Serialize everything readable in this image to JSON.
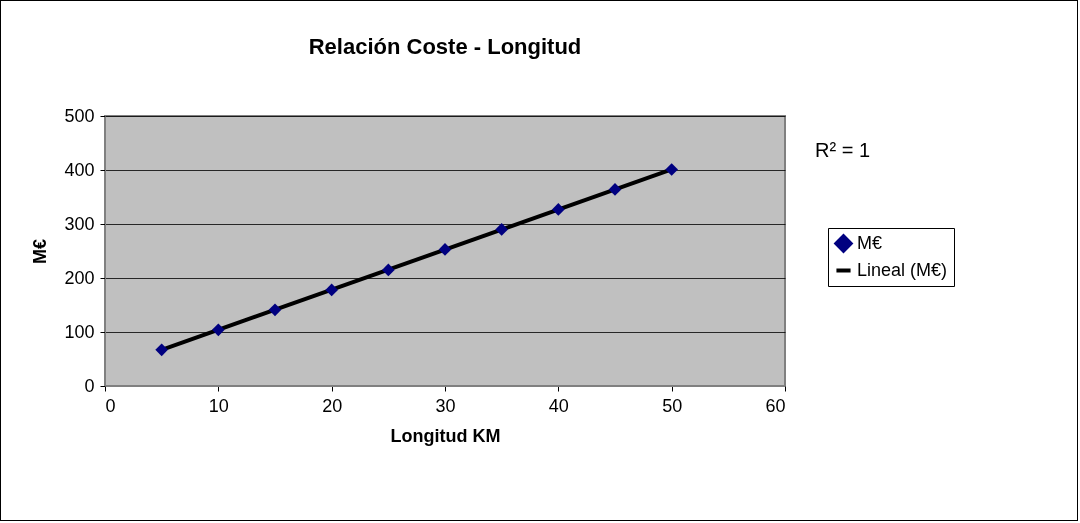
{
  "chart_data": {
    "type": "scatter",
    "title": "Relación Coste - Longitud",
    "xlabel": "Longitud KM",
    "ylabel": "M€",
    "x": [
      5,
      10,
      15,
      20,
      25,
      30,
      35,
      40,
      45,
      50
    ],
    "series": [
      {
        "name": "M€",
        "type": "scatter",
        "color": "#000080",
        "marker": "diamond",
        "values": [
          67,
          104,
          141,
          178,
          215,
          253,
          290,
          327,
          364,
          401
        ]
      },
      {
        "name": "Lineal (M€)",
        "type": "line",
        "color": "#000000",
        "line_style": "solid",
        "marker": "none",
        "x": [
          5,
          50
        ],
        "values": [
          67,
          401
        ]
      }
    ],
    "xlim": [
      0,
      60
    ],
    "xticks": [
      0,
      10,
      20,
      30,
      40,
      50,
      60
    ],
    "ylim": [
      0,
      500
    ],
    "yticks": [
      0,
      100,
      200,
      300,
      400,
      500
    ],
    "grid": "y",
    "legend": "right",
    "annotations": [
      "R² = 1"
    ]
  }
}
